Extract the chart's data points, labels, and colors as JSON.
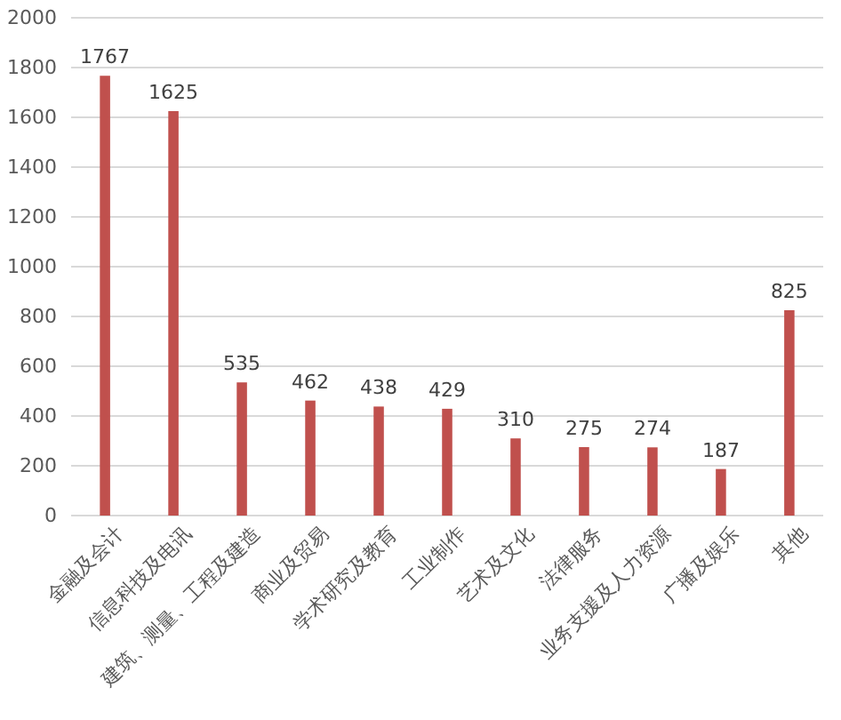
{
  "chart_data": {
    "type": "bar",
    "categories": [
      "金融及会计",
      "信息科技及电讯",
      "建筑、测量、工程及建造",
      "商业及贸易",
      "学术研究及教育",
      "工业制作",
      "艺术及文化",
      "法律服务",
      "业务支援及人力资源",
      "广播及娱乐",
      "其他"
    ],
    "values": [
      1767,
      1625,
      535,
      462,
      438,
      429,
      310,
      275,
      274,
      187,
      825
    ],
    "color": "#c0504d",
    "ylim": [
      0,
      2000
    ],
    "yticks": [
      0,
      200,
      400,
      600,
      800,
      1000,
      1200,
      1400,
      1600,
      1800,
      2000
    ],
    "grid": "y",
    "data_labels": true
  }
}
